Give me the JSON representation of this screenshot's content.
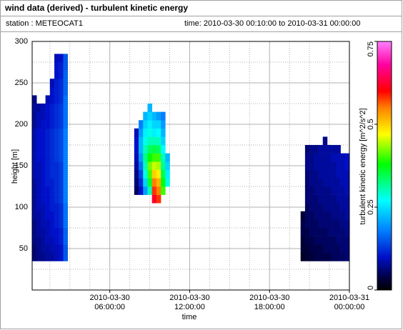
{
  "header": {
    "title": "wind data (derived) - turbulent kinetic energy",
    "station": "station : METEOCAT1",
    "time": "time: 2010-03-30 00:10:00 to 2010-03-31 00:00:00"
  },
  "chart_data": {
    "type": "heatmap",
    "xlabel": "time",
    "ylabel": "height [m]",
    "zlabel": "turbulent kinetic energy [m^2/s^2]",
    "xlim": [
      "2010-03-30 00:10:00",
      "2010-03-31 00:00:00"
    ],
    "xticks": [
      "2010-03-30 06:00:00",
      "2010-03-30 12:00:00",
      "2010-03-30 18:00:00",
      "2010-03-31 00:00:00"
    ],
    "ylim": [
      0,
      300
    ],
    "yticks": [
      50,
      100,
      150,
      200,
      250,
      300
    ],
    "zlim": [
      0,
      0.75
    ],
    "zticks": [
      0,
      0.25,
      0.5,
      0.75
    ],
    "grid": true,
    "minor_grid": {
      "x": 4,
      "y": 2
    },
    "colorscale": [
      [
        0,
        "#000000"
      ],
      [
        0.04,
        "#000048"
      ],
      [
        0.1,
        "#0010c8"
      ],
      [
        0.18,
        "#0080ff"
      ],
      [
        0.27,
        "#00ffff"
      ],
      [
        0.38,
        "#00ff00"
      ],
      [
        0.47,
        "#ffff00"
      ],
      [
        0.55,
        "#ff8000"
      ],
      [
        0.6,
        "#ff0000"
      ],
      [
        0.68,
        "#ff00a0"
      ],
      [
        0.75,
        "#ff80ff"
      ]
    ],
    "bin_minutes": 20,
    "bin_height": 10,
    "columns": [
      {
        "x": "2010-03-30 00:10:00",
        "bottom": 35,
        "values": [
          0.06,
          0.06,
          0.07,
          0.07,
          0.07,
          0.08,
          0.08,
          0.08,
          0.08,
          0.08,
          0.09,
          0.09,
          0.09,
          0.09,
          0.09,
          0.09,
          0.08,
          0.08,
          0.08,
          0.07
        ]
      },
      {
        "x": "2010-03-30 00:30:00",
        "bottom": 35,
        "values": [
          0.07,
          0.07,
          0.07,
          0.08,
          0.08,
          0.08,
          0.09,
          0.09,
          0.09,
          0.09,
          0.09,
          0.09,
          0.1,
          0.1,
          0.1,
          0.1,
          0.09,
          0.09,
          0.08
        ]
      },
      {
        "x": "2010-03-30 00:50:00",
        "bottom": 35,
        "values": [
          0.07,
          0.08,
          0.08,
          0.08,
          0.09,
          0.09,
          0.09,
          0.1,
          0.1,
          0.1,
          0.1,
          0.1,
          0.1,
          0.1,
          0.1,
          0.1,
          0.1,
          0.09,
          0.09
        ]
      },
      {
        "x": "2010-03-30 01:10:00",
        "bottom": 35,
        "values": [
          0.08,
          0.08,
          0.09,
          0.09,
          0.09,
          0.1,
          0.1,
          0.1,
          0.1,
          0.11,
          0.11,
          0.11,
          0.11,
          0.11,
          0.11,
          0.11,
          0.1,
          0.1,
          0.1,
          0.09
        ]
      },
      {
        "x": "2010-03-30 01:30:00",
        "bottom": 35,
        "values": [
          0.08,
          0.09,
          0.09,
          0.1,
          0.1,
          0.1,
          0.11,
          0.11,
          0.11,
          0.11,
          0.12,
          0.12,
          0.12,
          0.12,
          0.12,
          0.12,
          0.11,
          0.11,
          0.11,
          0.1,
          0.1,
          0.09
        ]
      },
      {
        "x": "2010-03-30 01:50:00",
        "bottom": 35,
        "values": [
          0.09,
          0.09,
          0.1,
          0.1,
          0.11,
          0.11,
          0.11,
          0.12,
          0.12,
          0.12,
          0.12,
          0.12,
          0.13,
          0.13,
          0.13,
          0.13,
          0.12,
          0.12,
          0.12,
          0.11,
          0.11,
          0.11,
          0.1,
          0.1,
          0.09
        ]
      },
      {
        "x": "2010-03-30 02:10:00",
        "bottom": 35,
        "values": [
          0.1,
          0.1,
          0.11,
          0.11,
          0.12,
          0.12,
          0.12,
          0.13,
          0.13,
          0.13,
          0.13,
          0.13,
          0.14,
          0.14,
          0.14,
          0.14,
          0.13,
          0.13,
          0.13,
          0.12,
          0.12,
          0.12,
          0.11,
          0.11,
          0.1
        ]
      },
      {
        "x": "2010-03-30 02:30:00",
        "bottom": 35,
        "values": [
          0.15,
          0.15,
          0.16,
          0.16,
          0.17,
          0.17,
          0.17,
          0.18,
          0.18,
          0.18,
          0.18,
          0.18,
          0.18,
          0.18,
          0.18,
          0.18,
          0.17,
          0.17,
          0.17,
          0.17,
          0.16,
          0.16,
          0.16,
          0.15,
          0.15
        ]
      },
      {
        "x": "2010-03-30 07:50:00",
        "bottom": 115,
        "values": [
          0.05,
          0.06,
          0.07,
          0.08,
          0.09,
          0.1,
          0.1,
          0.09
        ]
      },
      {
        "x": "2010-03-30 08:10:00",
        "bottom": 115,
        "values": [
          0.1,
          0.12,
          0.14,
          0.17,
          0.2,
          0.22,
          0.22,
          0.2,
          0.18
        ]
      },
      {
        "x": "2010-03-30 08:30:00",
        "bottom": 115,
        "values": [
          0.2,
          0.24,
          0.28,
          0.3,
          0.32,
          0.3,
          0.28,
          0.26,
          0.24,
          0.22
        ]
      },
      {
        "x": "2010-03-30 08:50:00",
        "bottom": 115,
        "values": [
          0.3,
          0.36,
          0.4,
          0.42,
          0.38,
          0.34,
          0.3,
          0.28,
          0.26,
          0.24,
          0.22
        ]
      },
      {
        "x": "2010-03-30 09:10:00",
        "bottom": 105,
        "values": [
          0.62,
          0.58,
          0.55,
          0.5,
          0.45,
          0.4,
          0.35,
          0.3,
          0.26,
          0.24,
          0.22
        ]
      },
      {
        "x": "2010-03-30 09:30:00",
        "bottom": 105,
        "values": [
          0.58,
          0.55,
          0.52,
          0.48,
          0.44,
          0.4,
          0.34,
          0.3,
          0.27,
          0.24,
          0.2
        ]
      },
      {
        "x": "2010-03-30 09:50:00",
        "bottom": 115,
        "values": [
          0.4,
          0.38,
          0.35,
          0.32,
          0.3,
          0.27,
          0.24,
          0.22,
          0.2,
          0.18
        ]
      },
      {
        "x": "2010-03-30 10:10:00",
        "bottom": 125,
        "values": [
          0.28,
          0.26,
          0.24,
          0.22
        ]
      },
      {
        "x": "2010-03-30 20:20:00",
        "bottom": 35,
        "values": [
          0.02,
          0.03,
          0.03,
          0.04,
          0.04,
          0.03
        ]
      },
      {
        "x": "2010-03-30 20:40:00",
        "bottom": 35,
        "values": [
          0.03,
          0.03,
          0.04,
          0.04,
          0.05,
          0.05,
          0.05,
          0.06,
          0.06,
          0.06,
          0.06,
          0.07,
          0.07,
          0.06
        ]
      },
      {
        "x": "2010-03-30 21:00:00",
        "bottom": 35,
        "values": [
          0.03,
          0.04,
          0.04,
          0.05,
          0.05,
          0.05,
          0.06,
          0.06,
          0.06,
          0.07,
          0.07,
          0.07,
          0.07,
          0.07
        ]
      },
      {
        "x": "2010-03-30 21:20:00",
        "bottom": 35,
        "values": [
          0.04,
          0.04,
          0.05,
          0.05,
          0.05,
          0.06,
          0.06,
          0.06,
          0.07,
          0.07,
          0.07,
          0.08,
          0.08,
          0.07
        ]
      },
      {
        "x": "2010-03-30 21:40:00",
        "bottom": 35,
        "values": [
          0.04,
          0.04,
          0.05,
          0.05,
          0.06,
          0.06,
          0.06,
          0.07,
          0.07,
          0.07,
          0.08,
          0.08,
          0.08,
          0.08
        ]
      },
      {
        "x": "2010-03-30 22:00:00",
        "bottom": 35,
        "values": [
          0.04,
          0.05,
          0.05,
          0.05,
          0.06,
          0.06,
          0.07,
          0.07,
          0.07,
          0.08,
          0.08,
          0.08,
          0.08,
          0.08,
          0.07
        ]
      },
      {
        "x": "2010-03-30 22:20:00",
        "bottom": 35,
        "values": [
          0.04,
          0.05,
          0.05,
          0.06,
          0.06,
          0.06,
          0.07,
          0.07,
          0.07,
          0.08,
          0.08,
          0.08,
          0.08,
          0.08
        ]
      },
      {
        "x": "2010-03-30 22:40:00",
        "bottom": 35,
        "values": [
          0.05,
          0.05,
          0.05,
          0.06,
          0.06,
          0.07,
          0.07,
          0.07,
          0.08,
          0.08,
          0.08,
          0.08,
          0.09,
          0.08
        ]
      },
      {
        "x": "2010-03-30 23:00:00",
        "bottom": 35,
        "values": [
          0.05,
          0.05,
          0.06,
          0.06,
          0.06,
          0.07,
          0.07,
          0.08,
          0.08,
          0.08,
          0.09,
          0.09,
          0.09,
          0.08
        ]
      },
      {
        "x": "2010-03-30 23:20:00",
        "bottom": 35,
        "values": [
          0.05,
          0.06,
          0.06,
          0.06,
          0.07,
          0.07,
          0.08,
          0.08,
          0.08,
          0.09,
          0.09,
          0.09,
          0.09
        ]
      },
      {
        "x": "2010-03-30 23:40:00",
        "bottom": 35,
        "values": [
          0.06,
          0.06,
          0.06,
          0.07,
          0.07,
          0.08,
          0.08,
          0.08,
          0.09,
          0.09,
          0.09,
          0.1,
          0.1
        ]
      }
    ]
  }
}
